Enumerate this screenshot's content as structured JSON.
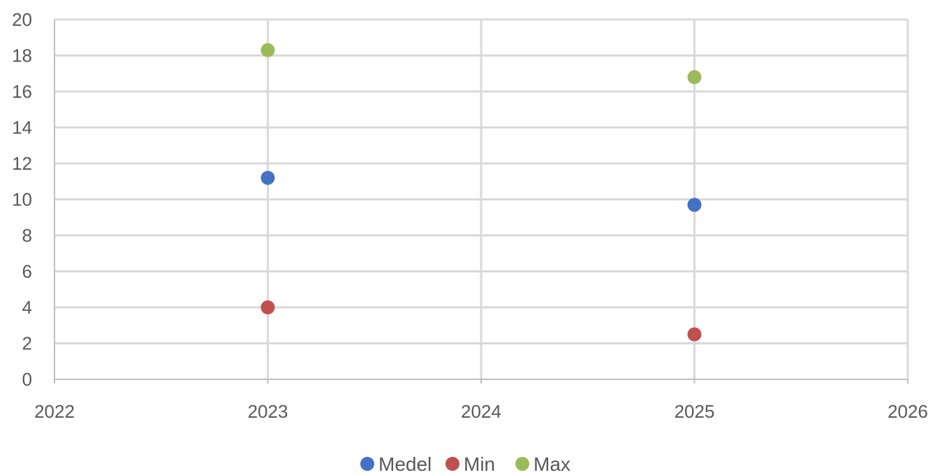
{
  "chart_data": {
    "type": "scatter",
    "title": "",
    "xlabel": "",
    "ylabel": "",
    "xlim": [
      2022,
      2026
    ],
    "ylim": [
      0,
      20
    ],
    "x_ticks": [
      2022,
      2023,
      2024,
      2025,
      2026
    ],
    "y_ticks": [
      0,
      2,
      4,
      6,
      8,
      10,
      12,
      14,
      16,
      18,
      20
    ],
    "grid": true,
    "legend_position": "bottom",
    "series": [
      {
        "name": "Medel",
        "color": "#4472C4",
        "points": [
          {
            "x": 2023,
            "y": 11.2
          },
          {
            "x": 2025,
            "y": 9.7
          }
        ]
      },
      {
        "name": "Min",
        "color": "#C0504D",
        "points": [
          {
            "x": 2023,
            "y": 4.0
          },
          {
            "x": 2025,
            "y": 2.5
          }
        ]
      },
      {
        "name": "Max",
        "color": "#9BBB59",
        "points": [
          {
            "x": 2023,
            "y": 18.3
          },
          {
            "x": 2025,
            "y": 16.8
          }
        ]
      }
    ]
  }
}
